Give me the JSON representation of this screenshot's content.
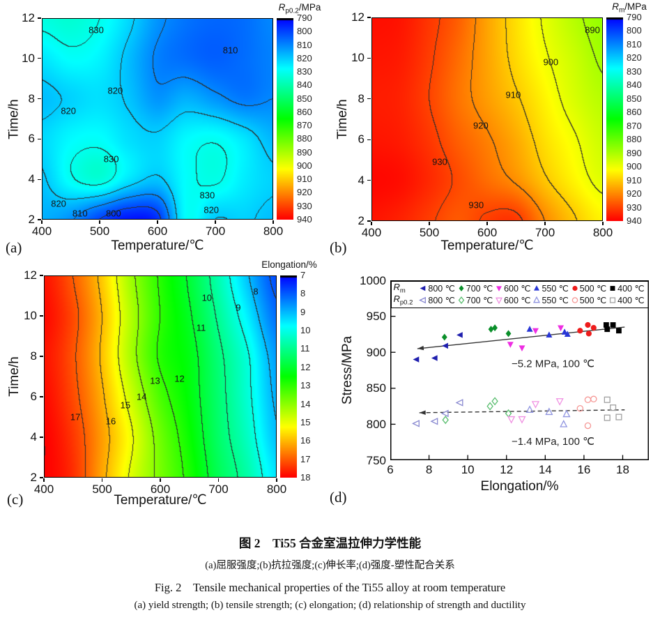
{
  "figure": {
    "caption_zh_title": "图 2　Ti55 合金室温拉伸力学性能",
    "caption_zh_sub": "(a)屈服强度;(b)抗拉强度;(c)伸长率;(d)强度-塑性配合关系",
    "caption_en_title": "Fig. 2　Tensile mechanical properties of the Ti55 alloy at room temperature",
    "caption_en_sub": "(a) yield strength; (b) tensile strength; (c) elongation; (d) relationship of strength and ductility"
  },
  "chart_data": [
    {
      "id": "a",
      "type": "heatmap",
      "panel_label": "(a)",
      "xlabel": "Temperature/℃",
      "ylabel": "Time/h",
      "xlim": [
        400,
        800
      ],
      "ylim": [
        2,
        12
      ],
      "x_ticks": [
        400,
        500,
        600,
        700,
        800
      ],
      "y_ticks": [
        2,
        4,
        6,
        8,
        10,
        12
      ],
      "grid_x": [
        400,
        450,
        500,
        550,
        600,
        650,
        700,
        750,
        800
      ],
      "grid_y_top_to_bottom": [
        12,
        10,
        8,
        6,
        4,
        2
      ],
      "values": [
        [
          832,
          834,
          830,
          822,
          812,
          807,
          805,
          806,
          810
        ],
        [
          824,
          828,
          826,
          818,
          809,
          806,
          804,
          806,
          809
        ],
        [
          818,
          821,
          823,
          819,
          812,
          816,
          812,
          808,
          810
        ],
        [
          822,
          827,
          828,
          823,
          821,
          827,
          829,
          824,
          817
        ],
        [
          819,
          829,
          833,
          824,
          819,
          828,
          831,
          825,
          821
        ],
        [
          816,
          811,
          800,
          793,
          797,
          828,
          820,
          821,
          818
        ]
      ],
      "contour_base": 790,
      "contour_step": 10,
      "colorbar": {
        "sym": "R",
        "sub": "p0.2",
        "unit": "/MPa",
        "min": 790,
        "max": 940,
        "tick_step": 10
      },
      "contour_labels": [
        {
          "v": 830,
          "x": 494,
          "y": 11.4
        },
        {
          "v": 810,
          "x": 726,
          "y": 10.4
        },
        {
          "v": 820,
          "x": 527,
          "y": 8.4
        },
        {
          "v": 820,
          "x": 446,
          "y": 7.4
        },
        {
          "v": 830,
          "x": 520,
          "y": 5.0
        },
        {
          "v": 830,
          "x": 686,
          "y": 3.2
        },
        {
          "v": 820,
          "x": 429,
          "y": 2.8
        },
        {
          "v": 810,
          "x": 466,
          "y": 2.3
        },
        {
          "v": 800,
          "x": 524,
          "y": 2.3
        },
        {
          "v": 820,
          "x": 693,
          "y": 2.5
        }
      ]
    },
    {
      "id": "b",
      "type": "heatmap",
      "panel_label": "(b)",
      "xlabel": "Temperature/℃",
      "ylabel": "Time/h",
      "xlim": [
        400,
        800
      ],
      "ylim": [
        2,
        12
      ],
      "x_ticks": [
        400,
        500,
        600,
        700,
        800
      ],
      "y_ticks": [
        2,
        4,
        6,
        8,
        10,
        12
      ],
      "grid_x": [
        400,
        450,
        500,
        550,
        600,
        650,
        700,
        750,
        800
      ],
      "grid_y_top_to_bottom": [
        12,
        10,
        8,
        6,
        4,
        2
      ],
      "values": [
        [
          938,
          937,
          932,
          926,
          916,
          907,
          899,
          892,
          887
        ],
        [
          937,
          936,
          931,
          924,
          916,
          908,
          901,
          895,
          889
        ],
        [
          936,
          935,
          930,
          923,
          917,
          911,
          904,
          897,
          892
        ],
        [
          937,
          936,
          932,
          926,
          921,
          915,
          907,
          901,
          895
        ],
        [
          939,
          938,
          934,
          929,
          924,
          919,
          911,
          904,
          898
        ],
        [
          937,
          935,
          931,
          927,
          931,
          932,
          920,
          911,
          904
        ]
      ],
      "contour_base": 790,
      "contour_step": 10,
      "colorbar": {
        "sym": "R",
        "sub": "m",
        "unit": "/MPa",
        "min": 790,
        "max": 940,
        "tick_step": 10
      },
      "contour_labels": [
        {
          "v": 890,
          "x": 782,
          "y": 11.4
        },
        {
          "v": 900,
          "x": 710,
          "y": 9.8
        },
        {
          "v": 910,
          "x": 645,
          "y": 8.2
        },
        {
          "v": 920,
          "x": 589,
          "y": 6.7
        },
        {
          "v": 930,
          "x": 518,
          "y": 4.9
        },
        {
          "v": 930,
          "x": 581,
          "y": 2.8
        }
      ]
    },
    {
      "id": "c",
      "type": "heatmap",
      "panel_label": "(c)",
      "xlabel": "Temperature/℃",
      "ylabel": "Time/h",
      "xlim": [
        400,
        800
      ],
      "ylim": [
        2,
        12
      ],
      "x_ticks": [
        400,
        500,
        600,
        700,
        800
      ],
      "y_ticks": [
        2,
        4,
        6,
        8,
        10,
        12
      ],
      "grid_x": [
        400,
        450,
        500,
        550,
        600,
        650,
        700,
        750,
        800
      ],
      "grid_y_top_to_bottom": [
        12,
        10,
        8,
        6,
        4,
        2
      ],
      "values": [
        [
          17.8,
          17.0,
          15.8,
          14.2,
          12.9,
          11.9,
          10.6,
          9.1,
          7.8
        ],
        [
          17.9,
          17.2,
          16.0,
          14.4,
          13.0,
          12.1,
          10.9,
          9.6,
          8.2
        ],
        [
          17.8,
          17.1,
          15.9,
          14.3,
          12.9,
          12.3,
          11.2,
          10.1,
          8.7
        ],
        [
          17.9,
          17.2,
          16.1,
          14.7,
          13.3,
          12.4,
          11.3,
          10.2,
          8.9
        ],
        [
          18.0,
          17.4,
          16.3,
          15.1,
          13.7,
          12.6,
          11.4,
          10.4,
          9.1
        ],
        [
          18.0,
          17.5,
          16.2,
          14.9,
          13.8,
          12.8,
          11.6,
          10.7,
          9.5
        ]
      ],
      "contour_base": 7,
      "contour_step": 1,
      "colorbar": {
        "title": "Elongation/%",
        "min": 7,
        "max": 18,
        "tick_step": 1
      },
      "contour_labels": [
        {
          "v": 8,
          "x": 764,
          "y": 11.2
        },
        {
          "v": 9,
          "x": 734,
          "y": 10.4
        },
        {
          "v": 10,
          "x": 680,
          "y": 10.9
        },
        {
          "v": 11,
          "x": 670,
          "y": 9.4
        },
        {
          "v": 12,
          "x": 633,
          "y": 6.9
        },
        {
          "v": 13,
          "x": 591,
          "y": 6.8
        },
        {
          "v": 14,
          "x": 568,
          "y": 6.0
        },
        {
          "v": 15,
          "x": 540,
          "y": 5.6
        },
        {
          "v": 16,
          "x": 515,
          "y": 4.8
        },
        {
          "v": 17,
          "x": 454,
          "y": 5.0
        }
      ]
    },
    {
      "id": "d",
      "type": "scatter",
      "panel_label": "(d)",
      "xlabel": "Elongation/%",
      "ylabel": "Stress/MPa",
      "xlim": [
        6,
        19.35
      ],
      "ylim": [
        750,
        1000
      ],
      "x_ticks": [
        6,
        8,
        10,
        12,
        14,
        16,
        18
      ],
      "y_ticks": [
        750,
        800,
        850,
        900,
        950,
        1000
      ],
      "legend": {
        "groups": [
          {
            "sym": "R",
            "sub": "m"
          },
          {
            "sym": "R",
            "sub": "p0.2"
          }
        ]
      },
      "series": [
        {
          "group": "Rm",
          "label": "800 ℃",
          "marker": "tri-left",
          "filled": true,
          "color": "#1f1fae",
          "points": [
            [
              7.35,
              890
            ],
            [
              8.3,
              892
            ],
            [
              8.85,
              909
            ],
            [
              9.6,
              924
            ]
          ]
        },
        {
          "group": "Rm",
          "label": "700 ℃",
          "marker": "diamond",
          "filled": true,
          "color": "#0a8f2a",
          "points": [
            [
              8.8,
              921
            ],
            [
              11.2,
              932
            ],
            [
              11.4,
              934
            ],
            [
              12.1,
              926
            ]
          ]
        },
        {
          "group": "Rm",
          "label": "600 ℃",
          "marker": "tri-down",
          "filled": true,
          "color": "#ee2ee2",
          "points": [
            [
              12.2,
              911
            ],
            [
              12.8,
              906
            ],
            [
              13.5,
              930
            ],
            [
              14.8,
              934
            ]
          ]
        },
        {
          "group": "Rm",
          "label": "550 ℃",
          "marker": "tri-up",
          "filled": true,
          "color": "#2836d6",
          "points": [
            [
              13.2,
              932
            ],
            [
              14.2,
              924
            ],
            [
              15.0,
              928
            ],
            [
              15.15,
              925
            ]
          ]
        },
        {
          "group": "Rm",
          "label": "500 ℃",
          "marker": "circle",
          "filled": true,
          "color": "#ee1c1c",
          "points": [
            [
              15.8,
              930
            ],
            [
              16.2,
              938
            ],
            [
              16.25,
              926
            ],
            [
              16.5,
              934
            ]
          ]
        },
        {
          "group": "Rm",
          "label": "400 ℃",
          "marker": "square",
          "filled": true,
          "color": "#000000",
          "points": [
            [
              17.15,
              938
            ],
            [
              17.2,
              932
            ],
            [
              17.5,
              938
            ],
            [
              17.8,
              930
            ]
          ]
        },
        {
          "group": "Rp0.2",
          "label": "800 ℃",
          "marker": "tri-left",
          "filled": false,
          "color": "#8888d0",
          "points": [
            [
              7.35,
              801
            ],
            [
              8.3,
              804
            ],
            [
              8.85,
              815
            ],
            [
              9.6,
              830
            ]
          ]
        },
        {
          "group": "Rp0.2",
          "label": "700 ℃",
          "marker": "diamond",
          "filled": false,
          "color": "#58bd6e",
          "points": [
            [
              8.85,
              806
            ],
            [
              11.15,
              825
            ],
            [
              11.4,
              832
            ],
            [
              12.1,
              815
            ]
          ]
        },
        {
          "group": "Rp0.2",
          "label": "600 ℃",
          "marker": "tri-down",
          "filled": false,
          "color": "#f090e2",
          "points": [
            [
              12.25,
              807
            ],
            [
              12.8,
              807
            ],
            [
              13.5,
              828
            ],
            [
              14.75,
              832
            ]
          ]
        },
        {
          "group": "Rp0.2",
          "label": "550 ℃",
          "marker": "tri-up",
          "filled": false,
          "color": "#8f94e0",
          "points": [
            [
              13.2,
              820
            ],
            [
              14.2,
              817
            ],
            [
              15.1,
              814
            ],
            [
              14.95,
              800
            ]
          ]
        },
        {
          "group": "Rp0.2",
          "label": "500 ℃",
          "marker": "circle",
          "filled": false,
          "color": "#f59694",
          "points": [
            [
              15.8,
              822
            ],
            [
              16.2,
              834
            ],
            [
              16.5,
              835
            ],
            [
              16.2,
              798
            ]
          ]
        },
        {
          "group": "Rp0.2",
          "label": "400 ℃",
          "marker": "square",
          "filled": false,
          "color": "#a0a0a0",
          "points": [
            [
              17.2,
              834
            ],
            [
              17.5,
              823
            ],
            [
              17.2,
              809
            ],
            [
              17.8,
              810
            ]
          ]
        }
      ],
      "trend_lines": [
        {
          "style": "solid",
          "x1": 7.4,
          "y1": 905,
          "x2": 18.1,
          "y2": 935,
          "arrow": "left",
          "annotation": "−5.2 MPa, 100 ℃",
          "ann_x": 14.4,
          "ann_y": 884
        },
        {
          "style": "dashed",
          "x1": 7.5,
          "y1": 816,
          "x2": 18.1,
          "y2": 820,
          "arrow": "left",
          "annotation": "−1.4 MPa, 100 ℃",
          "ann_x": 14.4,
          "ann_y": 776
        }
      ]
    }
  ]
}
